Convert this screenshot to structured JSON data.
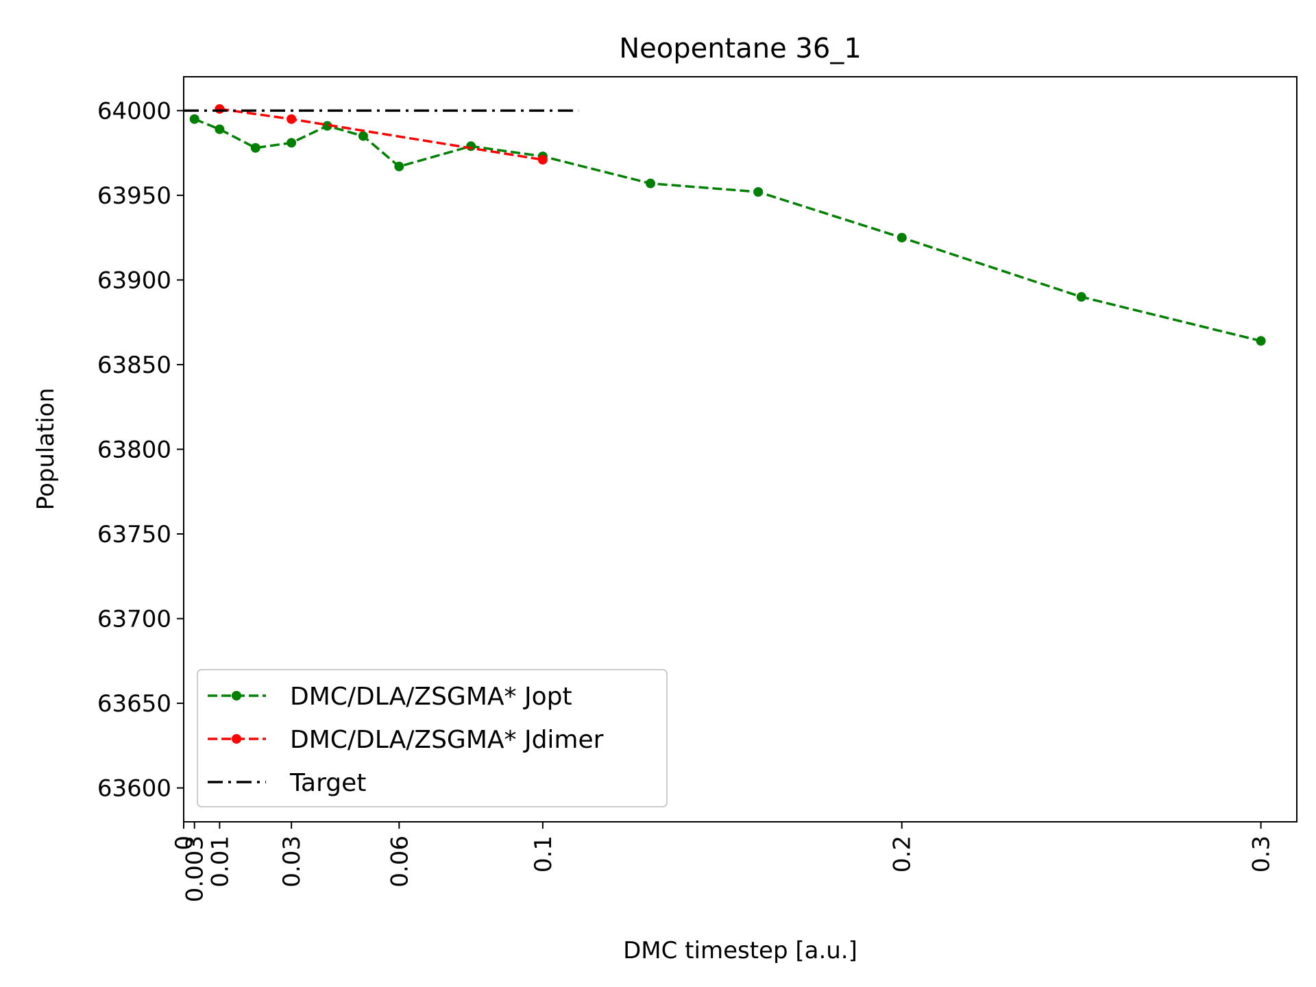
{
  "chart_data": {
    "type": "line",
    "title": "Neopentane 36_1",
    "xlabel": "DMC timestep [a.u.]",
    "ylabel": "Population",
    "xlim": [
      0,
      0.31
    ],
    "ylim": [
      63580,
      64020
    ],
    "xticks": [
      0,
      0.003,
      0.01,
      0.03,
      0.06,
      0.1,
      0.2,
      0.3
    ],
    "xtick_labels": [
      "0",
      "0.003",
      "0.01",
      "0.03",
      "0.06",
      "0.1",
      "0.2",
      "0.3"
    ],
    "yticks": [
      63600,
      63650,
      63700,
      63750,
      63800,
      63850,
      63900,
      63950,
      64000
    ],
    "ytick_labels": [
      "63600",
      "63650",
      "63700",
      "63750",
      "63800",
      "63850",
      "63900",
      "63950",
      "64000"
    ],
    "legend_position": "lower-left",
    "grid": false,
    "series": [
      {
        "name": "DMC/DLA/ZSGMA* Jopt",
        "color": "#008000",
        "linestyle": "dashed",
        "marker": "dot",
        "x": [
          0.003,
          0.01,
          0.02,
          0.03,
          0.04,
          0.05,
          0.06,
          0.08,
          0.1,
          0.13,
          0.16,
          0.2,
          0.25,
          0.3
        ],
        "y": [
          63995,
          63989,
          63978,
          63981,
          63991,
          63985,
          63967,
          63979,
          63973,
          63957,
          63952,
          63925,
          63890,
          63864
        ]
      },
      {
        "name": "DMC/DLA/ZSGMA* Jdimer",
        "color": "#ff0000",
        "linestyle": "dashed",
        "marker": "dot",
        "x": [
          0.01,
          0.03,
          0.1
        ],
        "y": [
          64001,
          63995,
          63971
        ]
      },
      {
        "name": "Target",
        "color": "#000000",
        "linestyle": "dashdot",
        "marker": "none",
        "x": [
          0,
          0.11
        ],
        "y": [
          64000,
          64000
        ]
      }
    ]
  }
}
